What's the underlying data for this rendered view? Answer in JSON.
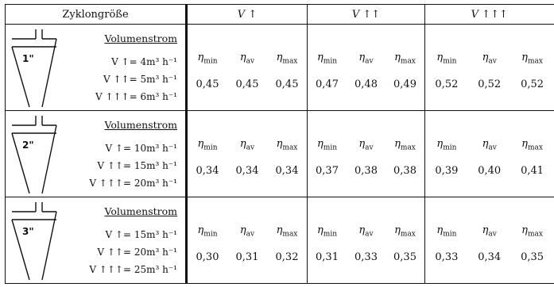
{
  "header": {
    "label": "Zyklongröße",
    "columns": [
      {
        "symbol": "V",
        "arrows": "↑"
      },
      {
        "symbol": "V",
        "arrows": "↑↑"
      },
      {
        "symbol": "V",
        "arrows": "↑↑↑"
      }
    ]
  },
  "eta_labels": {
    "min": "min",
    "av": "av",
    "max": "max"
  },
  "eta_symbol": "η",
  "groups": [
    {
      "size": "1\"",
      "title": "Volumenstrom",
      "flows": [
        "V ↑= 4m³ h⁻¹",
        "V ↑↑= 5m³ h⁻¹",
        "V ↑↑↑= 6m³ h⁻¹"
      ],
      "values": [
        [
          "0,45",
          "0,45",
          "0,45"
        ],
        [
          "0,47",
          "0,48",
          "0,49"
        ],
        [
          "0,52",
          "0,52",
          "0,52"
        ]
      ]
    },
    {
      "size": "2\"",
      "title": "Volumenstrom",
      "flows": [
        "V ↑= 10m³ h⁻¹",
        "V ↑↑= 15m³ h⁻¹",
        "V ↑↑↑= 20m³ h⁻¹"
      ],
      "values": [
        [
          "0,34",
          "0,34",
          "0,34"
        ],
        [
          "0,37",
          "0,38",
          "0,38"
        ],
        [
          "0,39",
          "0,40",
          "0,41"
        ]
      ]
    },
    {
      "size": "3\"",
      "title": "Volumenstrom",
      "flows": [
        "V ↑= 15m³ h⁻¹",
        "V ↑↑= 20m³ h⁻¹",
        "V ↑↑↑= 25m³ h⁻¹"
      ],
      "values": [
        [
          "0,30",
          "0,31",
          "0,32"
        ],
        [
          "0,31",
          "0,33",
          "0,35"
        ],
        [
          "0,33",
          "0,34",
          "0,35"
        ]
      ]
    }
  ]
}
